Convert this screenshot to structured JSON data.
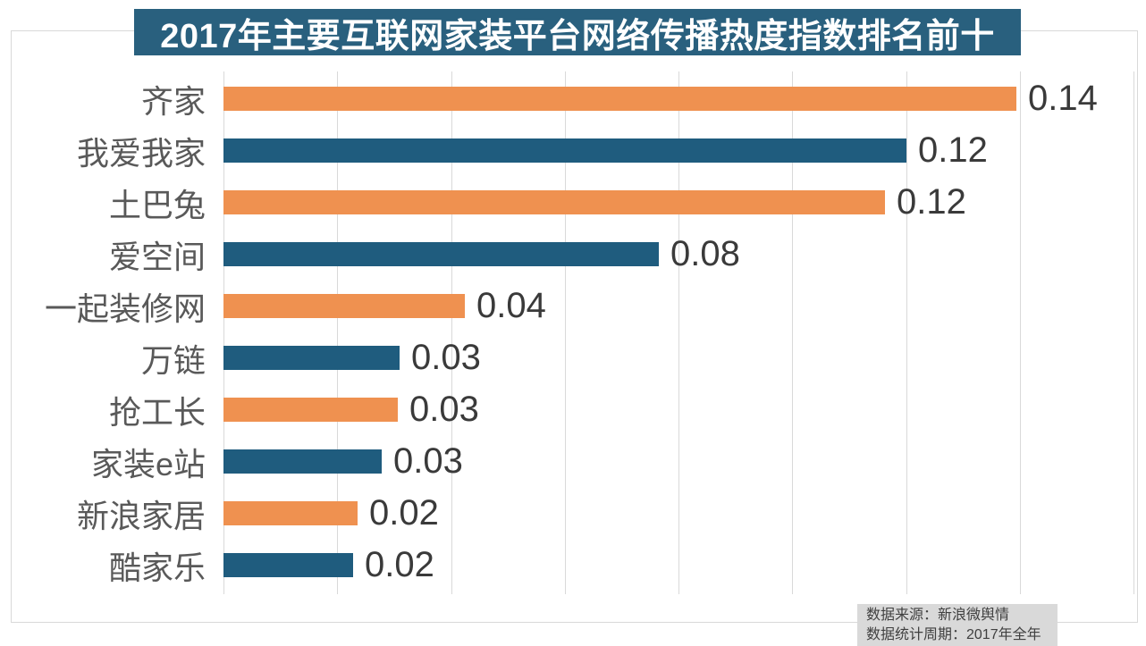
{
  "chart_data": {
    "type": "bar",
    "orientation": "horizontal",
    "title": "2017年主要互联网家装平台网络传播热度指数排名前十",
    "categories": [
      "齐家",
      "我爱我家",
      "土巴兔",
      "爱空间",
      "一起装修网",
      "万链",
      "抢工长",
      "家装e站",
      "新浪家居",
      "酷家乐"
    ],
    "values": [
      0.14,
      0.12,
      0.12,
      0.08,
      0.04,
      0.03,
      0.03,
      0.03,
      0.02,
      0.02
    ],
    "value_labels": [
      "0.14",
      "0.12",
      "0.12",
      "0.08",
      "0.04",
      "0.03",
      "0.03",
      "0.03",
      "0.02",
      "0.02"
    ],
    "values_precise": [
      0.1394,
      0.1201,
      0.1163,
      0.0765,
      0.0424,
      0.031,
      0.0306,
      0.0278,
      0.0236,
      0.0228
    ],
    "xlim": [
      0,
      0.16
    ],
    "gridline_step": 0.02,
    "grid": true,
    "axis_tick_labels_visible": false,
    "legend": "none",
    "bar_colors_alternating": [
      "#EF9150",
      "#1F5C7E"
    ]
  },
  "footer": {
    "line1": "数据来源：新浪微舆情",
    "line2": "数据统计周期：2017年全年"
  },
  "colors": {
    "background": "#FFFFFF",
    "banner_bg": "#29607E",
    "banner_text": "#FFFFFF",
    "orange": "#EF9150",
    "blue": "#1F5C7E",
    "gridline": "#D9D9D9",
    "frame_border": "#D9D9D9",
    "category_text": "#595959",
    "value_text": "#3A3A3A",
    "footer_bg": "#D9D9D9",
    "footer_text": "#404040"
  }
}
